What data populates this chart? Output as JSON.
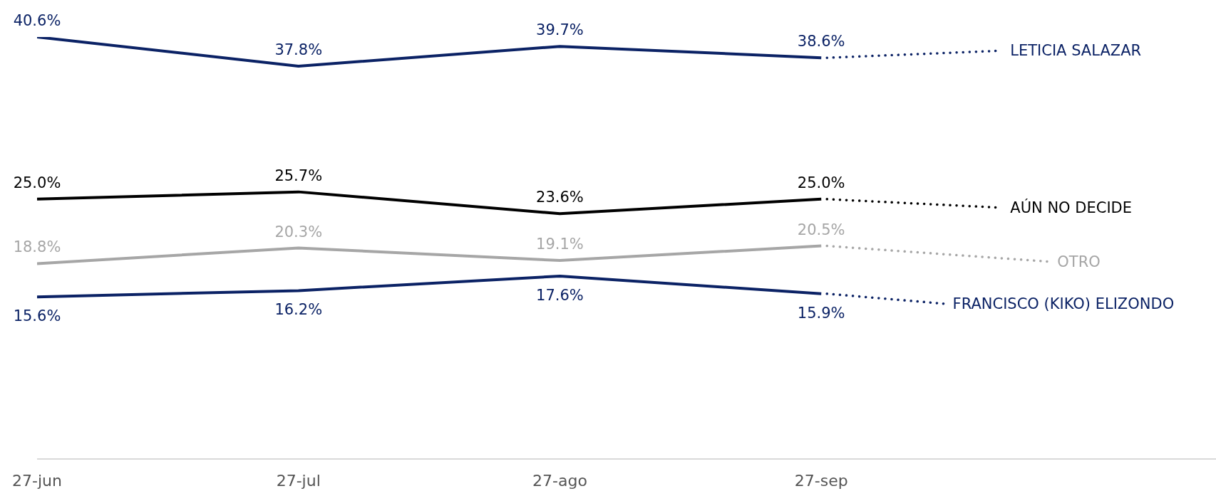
{
  "chart_data": {
    "type": "line",
    "categories": [
      "27-jun",
      "27-jul",
      "27-ago",
      "27-sep"
    ],
    "line_style": "solid",
    "marker": "none",
    "series": [
      {
        "name": "LETICIA SALAZAR",
        "color": "#0b2265",
        "values": [
          40.6,
          37.8,
          39.7,
          38.6
        ],
        "value_labels": [
          "40.6%",
          "37.8%",
          "39.7%",
          "38.6%"
        ]
      },
      {
        "name": "AÚN NO DECIDE",
        "color": "#000000",
        "values": [
          25.0,
          25.7,
          23.6,
          25.0
        ],
        "value_labels": [
          "25.0%",
          "25.7%",
          "23.6%",
          "25.0%"
        ]
      },
      {
        "name": "OTRO",
        "color": "#a6a6a6",
        "values": [
          18.8,
          20.3,
          19.1,
          20.5
        ],
        "value_labels": [
          "18.8%",
          "20.3%",
          "19.1%",
          "20.5%"
        ]
      },
      {
        "name": "FRANCISCO (KIKO) ELIZONDO",
        "color": "#0b2265",
        "values": [
          15.6,
          16.2,
          17.6,
          15.9
        ],
        "value_labels": [
          "15.6%",
          "16.2%",
          "17.6%",
          "15.9%"
        ]
      }
    ]
  }
}
